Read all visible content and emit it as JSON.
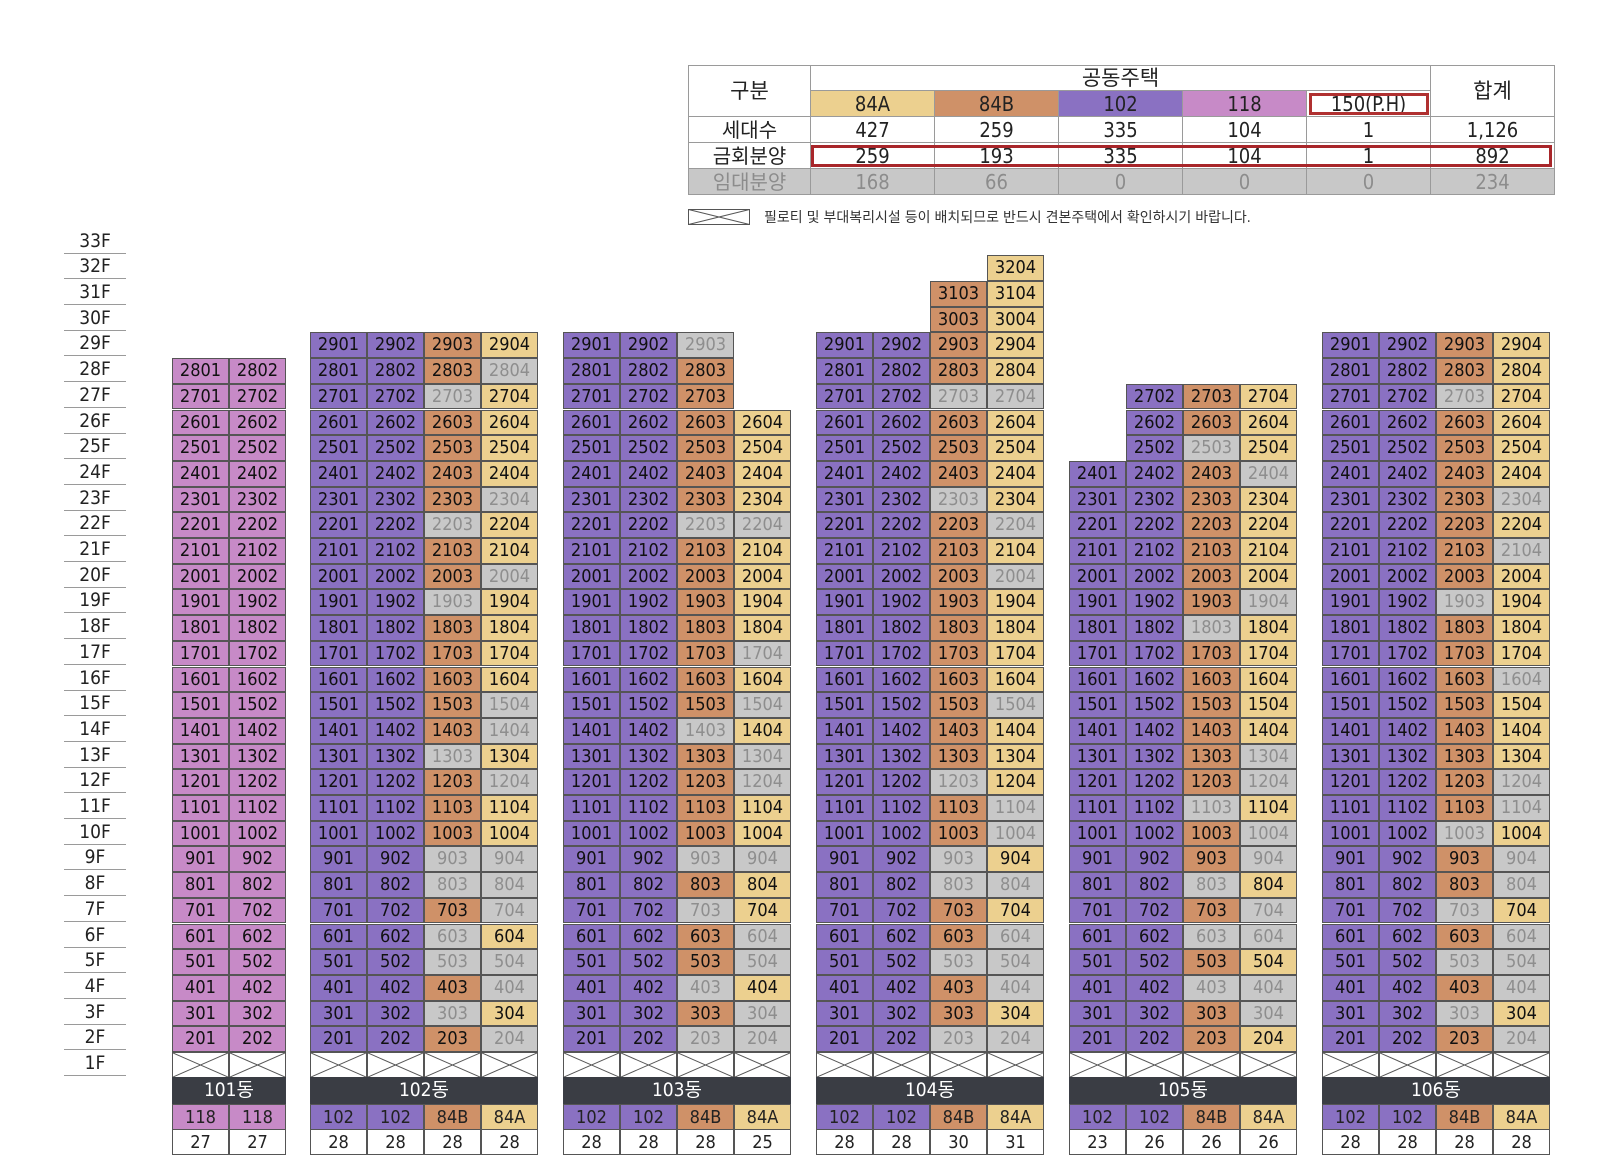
{
  "summary": {
    "header_category": "구분",
    "header_group": "공동주택",
    "header_total": "합계",
    "types": [
      "84A",
      "84B",
      "102",
      "118",
      "150(P.H)"
    ],
    "rows": [
      {
        "label": "세대수",
        "values": [
          "427",
          "259",
          "335",
          "104",
          "1"
        ],
        "total": "1,126"
      },
      {
        "label": "금회분양",
        "values": [
          "259",
          "193",
          "335",
          "104",
          "1"
        ],
        "total": "892"
      },
      {
        "label": "임대분양",
        "values": [
          "168",
          "66",
          "0",
          "0",
          "0"
        ],
        "total": "234"
      }
    ]
  },
  "legend": {
    "text": "필로티 및 부대복리시설 등이 배치되므로 반드시 견본주택에서 확인하시기 바랍니다."
  },
  "floors": [
    "33F",
    "32F",
    "31F",
    "30F",
    "29F",
    "28F",
    "27F",
    "26F",
    "25F",
    "24F",
    "23F",
    "22F",
    "21F",
    "20F",
    "19F",
    "18F",
    "17F",
    "16F",
    "15F",
    "14F",
    "13F",
    "12F",
    "11F",
    "10F",
    "9F",
    "8F",
    "7F",
    "6F",
    "5F",
    "4F",
    "3F",
    "2F",
    "1F"
  ],
  "colors": {
    "84A": "#ecd08f",
    "84B": "#cf9168",
    "102": "#8a71c2",
    "118": "#c78ac7",
    "rental": "#c8c8c8",
    "footer": "#3a3d44"
  },
  "buildings": [
    {
      "name": "101동",
      "columns": [
        {
          "type": "118",
          "count": "27",
          "top": 28,
          "rental": []
        },
        {
          "type": "118",
          "count": "27",
          "top": 28,
          "rental": []
        }
      ]
    },
    {
      "name": "102동",
      "columns": [
        {
          "type": "102",
          "count": "28",
          "top": 29,
          "rental": []
        },
        {
          "type": "102",
          "count": "28",
          "top": 29,
          "rental": []
        },
        {
          "type": "84B",
          "count": "28",
          "top": 29,
          "rental": [
            27,
            22,
            19,
            13,
            9,
            8,
            6,
            5,
            3
          ]
        },
        {
          "type": "84A",
          "count": "28",
          "top": 29,
          "rental": [
            28,
            23,
            20,
            15,
            14,
            12,
            9,
            8,
            7,
            5,
            4,
            2
          ]
        }
      ]
    },
    {
      "name": "103동",
      "columns": [
        {
          "type": "102",
          "count": "28",
          "top": 29,
          "rental": []
        },
        {
          "type": "102",
          "count": "28",
          "top": 29,
          "rental": []
        },
        {
          "type": "84B",
          "count": "28",
          "top": 29,
          "rental": [
            29,
            22,
            14,
            9,
            7,
            4,
            2
          ]
        },
        {
          "type": "84A",
          "count": "25",
          "top": 26,
          "rental": [
            22,
            17,
            15,
            13,
            12,
            9,
            6,
            5,
            3,
            2
          ]
        }
      ]
    },
    {
      "name": "104동",
      "columns": [
        {
          "type": "102",
          "count": "28",
          "top": 29,
          "rental": []
        },
        {
          "type": "102",
          "count": "28",
          "top": 29,
          "rental": []
        },
        {
          "type": "84B",
          "count": "30",
          "top": 31,
          "rental": [
            27,
            23,
            12,
            9,
            8,
            5,
            2
          ]
        },
        {
          "type": "84A",
          "count": "31",
          "top": 32,
          "rental": [
            27,
            22,
            20,
            15,
            11,
            10,
            8,
            6,
            5,
            4,
            2
          ]
        }
      ]
    },
    {
      "name": "105동",
      "columns": [
        {
          "type": "102",
          "count": "23",
          "top": 24,
          "rental": []
        },
        {
          "type": "102",
          "count": "26",
          "top": 27,
          "rental": []
        },
        {
          "type": "84B",
          "count": "26",
          "top": 27,
          "rental": [
            25,
            18,
            11,
            8,
            6,
            4
          ]
        },
        {
          "type": "84A",
          "count": "26",
          "top": 27,
          "rental": [
            24,
            19,
            13,
            12,
            10,
            9,
            7,
            6,
            4,
            3
          ]
        }
      ]
    },
    {
      "name": "106동",
      "columns": [
        {
          "type": "102",
          "count": "28",
          "top": 29,
          "rental": []
        },
        {
          "type": "102",
          "count": "28",
          "top": 29,
          "rental": []
        },
        {
          "type": "84B",
          "count": "28",
          "top": 29,
          "rental": [
            27,
            19,
            10,
            7,
            5,
            3
          ]
        },
        {
          "type": "84A",
          "count": "28",
          "top": 29,
          "rental": [
            23,
            21,
            16,
            12,
            11,
            9,
            8,
            6,
            5,
            4,
            2
          ]
        }
      ]
    }
  ]
}
